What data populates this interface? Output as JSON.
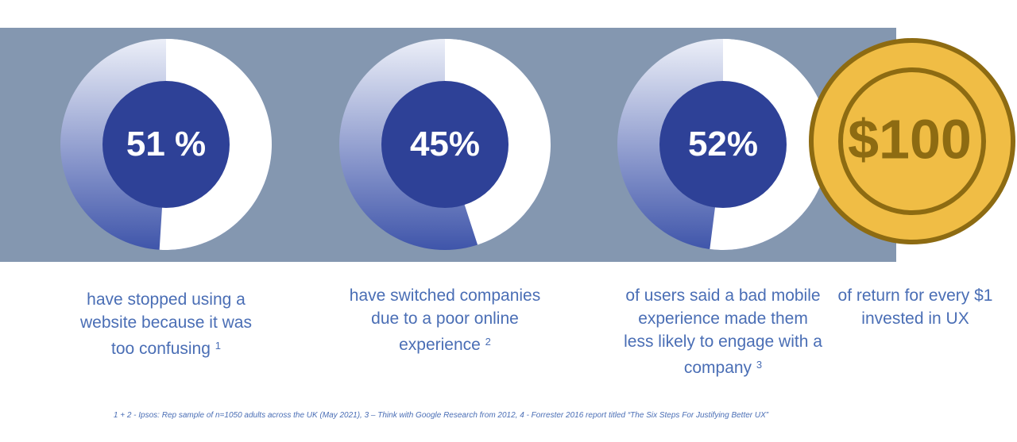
{
  "stats": [
    {
      "value": 51,
      "label": "51 %",
      "description": "have stopped using a website because it was too confusing",
      "ref": "1"
    },
    {
      "value": 45,
      "label": "45%",
      "description": "have switched companies due to a poor online experience",
      "ref": "2"
    },
    {
      "value": 52,
      "label": "52%",
      "description": "of users said a bad mobile experience made them less likely to engage with a company",
      "ref": "3"
    }
  ],
  "coin": {
    "label": "$100",
    "description": "of return for every $1 invested in UX"
  },
  "footnote": "1 + 2 - Ipsos: Rep sample of n=1050 adults across the UK (May 2021), 3 – Think with Google Research from 2012,  4 - Forrester 2016 report titled “The Six Steps For Justifying Better UX”"
}
